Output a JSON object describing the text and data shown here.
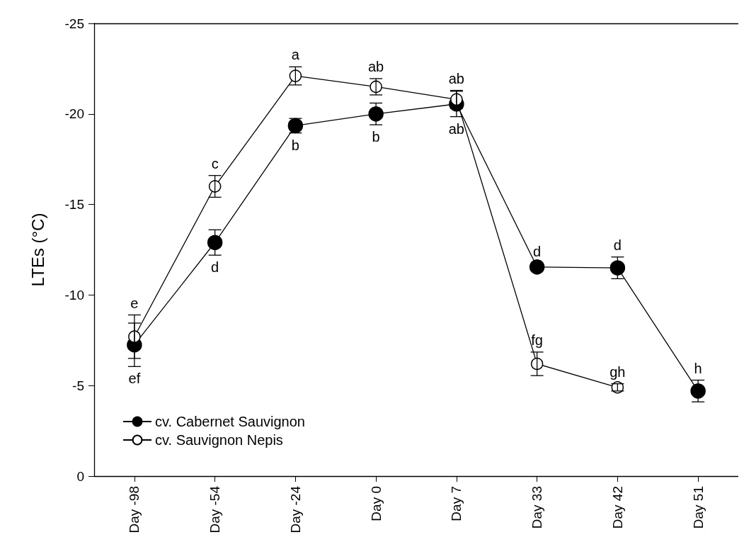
{
  "chart_data": {
    "type": "line",
    "ylabel": "LTEs (°C)",
    "categories": [
      "Day -98",
      "Day -54",
      "Day -24",
      "Day 0",
      "Day 7",
      "Day 33",
      "Day 42",
      "Day 51"
    ],
    "series": [
      {
        "name": "cv. Cabernet Sauvignon",
        "color": "#000000",
        "values": [
          -7.25,
          -12.9,
          -19.35,
          -20.0,
          -20.55,
          -11.55,
          -11.5,
          -4.7
        ],
        "errors": [
          1.2,
          0.7,
          0.4,
          0.6,
          0.7,
          0.2,
          0.6,
          0.6
        ]
      },
      {
        "name": "cv. Sauvignon Nepis",
        "color": "#ffffff",
        "values": [
          -7.7,
          -16.0,
          -22.1,
          -21.5,
          -20.8,
          -6.2,
          -4.9,
          null
        ],
        "errors": [
          1.2,
          0.6,
          0.5,
          0.45,
          0.5,
          0.65,
          0.2,
          null
        ]
      }
    ],
    "annotations": [
      {
        "text": "e",
        "x": "Day -98",
        "y": -7.7
      },
      {
        "text": "c",
        "x": "Day -54",
        "y": -16.0
      },
      {
        "text": "a",
        "x": "Day -24",
        "y": -22.1
      },
      {
        "text": "ab",
        "x": "Day 0",
        "y": -21.5
      },
      {
        "text": "ab",
        "x": "Day 7",
        "y": -20.8
      },
      {
        "text": "fg",
        "x": "Day 33",
        "y": -6.2
      },
      {
        "text": "gh",
        "x": "Day 42",
        "y": -4.9
      },
      {
        "text": "ef",
        "x": "Day -98",
        "y": -7.25
      },
      {
        "text": "d",
        "x": "Day -54",
        "y": -12.9
      },
      {
        "text": "b",
        "x": "Day -24",
        "y": -19.35
      },
      {
        "text": "b",
        "x": "Day 0",
        "y": -20.0
      },
      {
        "text": "ab",
        "x": "Day 7",
        "y": -20.55
      },
      {
        "text": "d",
        "x": "Day 33",
        "y": -11.55
      },
      {
        "text": "d",
        "x": "Day 42",
        "y": -11.5
      },
      {
        "text": "h",
        "x": "Day 51",
        "y": -4.7
      }
    ],
    "ylim": [
      0,
      -25
    ],
    "yticks": [
      0,
      -5,
      -10,
      -15,
      -20,
      -25
    ],
    "grid": false,
    "legend": "bottom left",
    "marker": "circle",
    "line_style": "solid"
  }
}
